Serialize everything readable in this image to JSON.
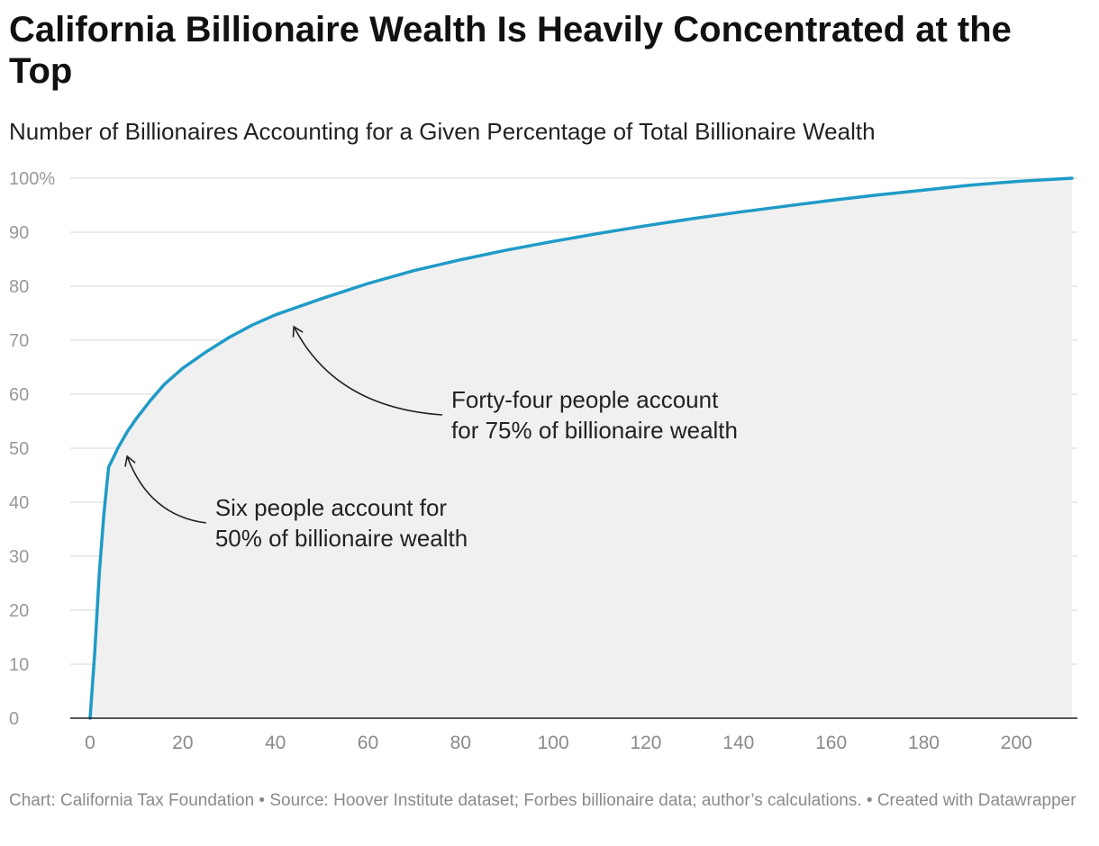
{
  "header": {
    "title": "California Billionaire Wealth Is Heavily Concentrated at the Top",
    "subtitle": "Number of Billionaires Accounting for a Given Percentage of Total Billionaire Wealth"
  },
  "footer": {
    "credit": "Chart: California Tax Foundation • Source: Hoover Institute dataset; Forbes billionaire data; author’s calculations. • Created with Datawrapper"
  },
  "chart_data": {
    "type": "area",
    "xlim": [
      0,
      212
    ],
    "ylim": [
      0,
      100
    ],
    "xticks": [
      0,
      20,
      40,
      60,
      80,
      100,
      120,
      140,
      160,
      180,
      200
    ],
    "yticks": [
      0,
      10,
      20,
      30,
      40,
      50,
      60,
      70,
      80,
      90,
      100
    ],
    "ytick_labels": [
      "0",
      "10",
      "20",
      "30",
      "40",
      "50",
      "60",
      "70",
      "80",
      "90",
      "100%"
    ],
    "grid": true,
    "series": [
      {
        "x": [
          0,
          1,
          2,
          3,
          4,
          5,
          6,
          8,
          10,
          13,
          16,
          20,
          25,
          30,
          35,
          40,
          44,
          50,
          60,
          70,
          80,
          90,
          100,
          110,
          120,
          130,
          140,
          150,
          160,
          170,
          180,
          190,
          200,
          212
        ],
        "y": [
          0,
          12,
          27,
          38,
          46.5,
          48.2,
          50,
          53,
          55.5,
          58.8,
          61.8,
          64.8,
          67.8,
          70.5,
          72.8,
          74.7,
          75.9,
          77.7,
          80.5,
          82.9,
          84.9,
          86.7,
          88.3,
          89.8,
          91.2,
          92.5,
          93.7,
          94.8,
          95.9,
          96.9,
          97.8,
          98.7,
          99.4,
          100
        ]
      }
    ],
    "colors": {
      "line": "#1f9bc7",
      "area": "#f0f0f0",
      "grid": "#dddddd",
      "axis": "#222222"
    },
    "annotations": [
      {
        "lines": [
          "Forty-four people account",
          "for 75% of billionaire wealth"
        ],
        "target_x": 44,
        "target_y": 72.5,
        "text_x": 78,
        "text_y": 57.5
      },
      {
        "lines": [
          "Six people account for",
          "50% of billionaire wealth"
        ],
        "target_x": 8,
        "target_y": 48.5,
        "text_x": 27,
        "text_y": 37.5
      }
    ]
  }
}
